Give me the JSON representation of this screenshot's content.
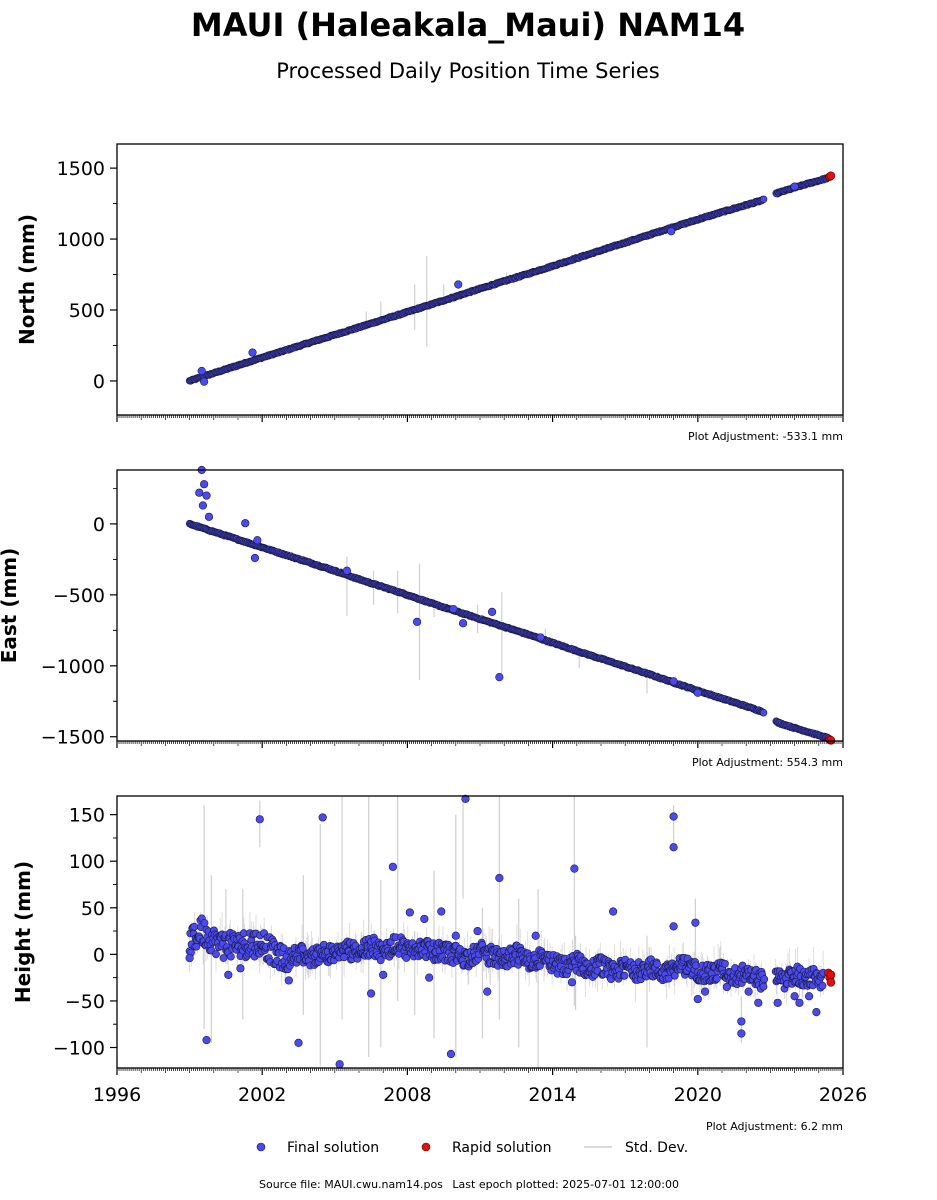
{
  "title": "MAUI (Haleakala_Maui) NAM14",
  "subtitle": "Processed Daily Position Time Series",
  "footer": {
    "source_label": "Source file: MAUI.cwu.nam14.pos",
    "last_epoch_label": "Last epoch plotted: 2025-07-01 12:00:00"
  },
  "legend": {
    "items": [
      {
        "label": "Final solution",
        "color": "#4a4af0"
      },
      {
        "label": "Rapid solution",
        "color": "#e01010"
      },
      {
        "label": "Std. Dev.",
        "color": "#cfcfcf"
      }
    ]
  },
  "chart_data": [
    {
      "type": "scatter",
      "ylabel": "North (mm)",
      "plot_adjustment": "Plot Adjustment: -533.1 mm",
      "xlim": [
        1996,
        2026
      ],
      "ylim": [
        -240,
        1670
      ],
      "yticks": [
        0,
        500,
        1000,
        1500
      ],
      "y_tick_labels": [
        "0",
        "500",
        "1000",
        "1500"
      ],
      "x_tick_labels": [],
      "series": [
        {
          "name": "Final solution",
          "points": [
            [
              1999.0,
              0
            ],
            [
              2000.0,
              55
            ],
            [
              2001.0,
              110
            ],
            [
              2002.0,
              165
            ],
            [
              2003.0,
              218
            ],
            [
              2004.0,
              272
            ],
            [
              2005.0,
              325
            ],
            [
              2006.0,
              378
            ],
            [
              2007.0,
              432
            ],
            [
              2008.0,
              486
            ],
            [
              2009.0,
              540
            ],
            [
              2010.0,
              595
            ],
            [
              2011.0,
              650
            ],
            [
              2012.0,
              703
            ],
            [
              2013.0,
              756
            ],
            [
              2014.0,
              810
            ],
            [
              2015.0,
              865
            ],
            [
              2016.0,
              920
            ],
            [
              2017.0,
              975
            ],
            [
              2018.0,
              1030
            ],
            [
              2019.0,
              1085
            ],
            [
              2020.0,
              1138
            ],
            [
              2021.0,
              1190
            ],
            [
              2022.0,
              1240
            ],
            [
              2022.7,
              1275
            ],
            [
              2023.3,
              1325
            ],
            [
              2024.0,
              1362
            ],
            [
              2024.5,
              1388
            ],
            [
              2025.0,
              1412
            ],
            [
              2025.4,
              1432
            ]
          ],
          "outliers": [
            [
              1999.6,
              -5
            ],
            [
              1999.5,
              70
            ],
            [
              2001.6,
              200
            ],
            [
              2010.1,
              680
            ],
            [
              2018.9,
              1055
            ],
            [
              2024.0,
              1370
            ]
          ]
        },
        {
          "name": "Rapid solution",
          "points": [
            [
              2025.45,
              1440
            ],
            [
              2025.5,
              1446
            ]
          ]
        }
      ],
      "std_dev": [
        [
          2006.3,
          440,
          100
        ],
        [
          2008.3,
          520,
          320
        ],
        [
          2008.8,
          560,
          640
        ],
        [
          2009.5,
          610,
          140
        ],
        [
          2006.9,
          490,
          140
        ],
        [
          2012.1,
          730,
          70
        ]
      ]
    },
    {
      "type": "scatter",
      "ylabel": "East (mm)",
      "plot_adjustment": "Plot Adjustment: 554.3 mm",
      "xlim": [
        1996,
        2026
      ],
      "ylim": [
        -1530,
        380
      ],
      "yticks": [
        -1500,
        -1000,
        -500,
        0
      ],
      "y_tick_labels": [
        "−1500",
        "−1000",
        "−500",
        "0"
      ],
      "x_tick_labels": [],
      "series": [
        {
          "name": "Final solution",
          "points": [
            [
              1999.0,
              0
            ],
            [
              2000.0,
              -55
            ],
            [
              2001.0,
              -110
            ],
            [
              2002.0,
              -165
            ],
            [
              2003.0,
              -220
            ],
            [
              2004.0,
              -275
            ],
            [
              2005.0,
              -330
            ],
            [
              2006.0,
              -390
            ],
            [
              2007.0,
              -445
            ],
            [
              2008.0,
              -500
            ],
            [
              2009.0,
              -560
            ],
            [
              2010.0,
              -615
            ],
            [
              2011.0,
              -670
            ],
            [
              2012.0,
              -725
            ],
            [
              2013.0,
              -780
            ],
            [
              2014.0,
              -838
            ],
            [
              2015.0,
              -895
            ],
            [
              2016.0,
              -950
            ],
            [
              2017.0,
              -1005
            ],
            [
              2018.0,
              -1060
            ],
            [
              2019.0,
              -1118
            ],
            [
              2020.0,
              -1175
            ],
            [
              2021.0,
              -1230
            ],
            [
              2022.0,
              -1285
            ],
            [
              2022.7,
              -1325
            ],
            [
              2023.3,
              -1400
            ],
            [
              2024.0,
              -1438
            ],
            [
              2024.5,
              -1463
            ],
            [
              2025.0,
              -1490
            ],
            [
              2025.4,
              -1510
            ]
          ],
          "outliers": [
            [
              1999.5,
              380
            ],
            [
              1999.6,
              280
            ],
            [
              1999.4,
              220
            ],
            [
              1999.7,
              200
            ],
            [
              1999.55,
              130
            ],
            [
              1999.8,
              50
            ],
            [
              2001.3,
              5
            ],
            [
              2001.7,
              -240
            ],
            [
              2001.8,
              -115
            ],
            [
              2005.5,
              -330
            ],
            [
              2008.4,
              -690
            ],
            [
              2009.9,
              -600
            ],
            [
              2010.3,
              -700
            ],
            [
              2011.5,
              -620
            ],
            [
              2011.8,
              -1080
            ],
            [
              2013.5,
              -800
            ],
            [
              2019.0,
              -1110
            ],
            [
              2020.0,
              -1190
            ]
          ]
        },
        {
          "name": "Rapid solution",
          "points": [
            [
              2025.45,
              -1520
            ],
            [
              2025.5,
              -1525
            ]
          ]
        }
      ],
      "std_dev": [
        [
          2005.5,
          -440,
          420
        ],
        [
          2006.6,
          -450,
          240
        ],
        [
          2007.6,
          -480,
          300
        ],
        [
          2008.5,
          -690,
          820
        ],
        [
          2009.1,
          -590,
          130
        ],
        [
          2010.9,
          -670,
          200
        ],
        [
          2011.9,
          -780,
          600
        ],
        [
          2013.7,
          -800,
          120
        ],
        [
          2015.1,
          -950,
          130
        ],
        [
          2017.9,
          -1120,
          150
        ]
      ]
    },
    {
      "type": "scatter",
      "ylabel": "Height (mm)",
      "plot_adjustment": "Plot Adjustment: 6.2 mm",
      "xlim": [
        1996,
        2026
      ],
      "ylim": [
        -122,
        170
      ],
      "yticks": [
        -100,
        -50,
        0,
        50,
        100,
        150
      ],
      "y_tick_labels": [
        "−100",
        "−50",
        "0",
        "50",
        "100",
        "150"
      ],
      "x_ticks": [
        1996,
        2002,
        2008,
        2014,
        2020,
        2026
      ],
      "x_tick_labels": [
        "1996",
        "2002",
        "2008",
        "2014",
        "2020",
        "2026"
      ],
      "series": [
        {
          "name": "Final solution",
          "points": [
            [
              1999.0,
              12
            ],
            [
              1999.5,
              25
            ],
            [
              2000.0,
              15
            ],
            [
              2000.5,
              8
            ],
            [
              2001.0,
              12
            ],
            [
              2001.5,
              10
            ],
            [
              2002.0,
              14
            ],
            [
              2002.5,
              0
            ],
            [
              2003.0,
              -8
            ],
            [
              2003.5,
              2
            ],
            [
              2004.0,
              -5
            ],
            [
              2004.5,
              4
            ],
            [
              2005.0,
              -2
            ],
            [
              2005.5,
              6
            ],
            [
              2006.0,
              0
            ],
            [
              2006.5,
              10
            ],
            [
              2007.0,
              2
            ],
            [
              2007.5,
              12
            ],
            [
              2008.0,
              5
            ],
            [
              2008.5,
              8
            ],
            [
              2009.0,
              4
            ],
            [
              2009.5,
              2
            ],
            [
              2010.0,
              0
            ],
            [
              2010.5,
              -5
            ],
            [
              2011.0,
              4
            ],
            [
              2011.5,
              -2
            ],
            [
              2012.0,
              -6
            ],
            [
              2012.5,
              0
            ],
            [
              2013.0,
              -8
            ],
            [
              2013.5,
              -4
            ],
            [
              2014.0,
              -10
            ],
            [
              2014.5,
              -14
            ],
            [
              2015.0,
              -8
            ],
            [
              2015.5,
              -16
            ],
            [
              2016.0,
              -12
            ],
            [
              2016.5,
              -20
            ],
            [
              2017.0,
              -15
            ],
            [
              2017.5,
              -18
            ],
            [
              2018.0,
              -14
            ],
            [
              2018.5,
              -20
            ],
            [
              2019.0,
              -15
            ],
            [
              2019.5,
              -12
            ],
            [
              2020.0,
              -18
            ],
            [
              2020.5,
              -22
            ],
            [
              2021.0,
              -16
            ],
            [
              2021.5,
              -24
            ],
            [
              2022.0,
              -20
            ],
            [
              2022.5,
              -28
            ],
            [
              2023.2,
              -25
            ],
            [
              2023.6,
              -30
            ],
            [
              2024.0,
              -20
            ],
            [
              2024.4,
              -28
            ],
            [
              2024.8,
              -25
            ],
            [
              2025.2,
              -30
            ]
          ],
          "outliers": [
            [
              2001.9,
              145
            ],
            [
              2004.5,
              147
            ],
            [
              2007.4,
              94
            ],
            [
              2011.8,
              82
            ],
            [
              2014.9,
              92
            ],
            [
              2010.4,
              167
            ],
            [
              2019.0,
              148
            ],
            [
              2019.0,
              115
            ],
            [
              2016.5,
              46
            ],
            [
              2019.9,
              34
            ],
            [
              2019.0,
              30
            ],
            [
              2008.1,
              45
            ],
            [
              2008.7,
              38
            ],
            [
              2009.4,
              46
            ],
            [
              2010.0,
              20
            ],
            [
              2010.9,
              25
            ],
            [
              2013.3,
              20
            ],
            [
              1999.7,
              -92
            ],
            [
              2003.5,
              -95
            ],
            [
              2005.2,
              -118
            ],
            [
              2009.8,
              -107
            ],
            [
              2006.5,
              -42
            ],
            [
              2011.3,
              -40
            ],
            [
              2021.8,
              -72
            ],
            [
              2021.8,
              -85
            ],
            [
              2024.0,
              -45
            ],
            [
              2024.2,
              -52
            ],
            [
              2024.9,
              -62
            ],
            [
              2024.6,
              -45
            ],
            [
              2023.3,
              -52
            ],
            [
              2022.5,
              -52
            ],
            [
              1999.0,
              -4
            ],
            [
              2000.6,
              -22
            ],
            [
              2001.1,
              -15
            ],
            [
              2003.1,
              -28
            ],
            [
              2007.0,
              -22
            ],
            [
              2008.9,
              -25
            ],
            [
              2014.8,
              -30
            ],
            [
              2020.0,
              -48
            ],
            [
              2020.3,
              -40
            ],
            [
              2021.2,
              -35
            ],
            [
              2022.1,
              -40
            ]
          ]
        },
        {
          "name": "Rapid solution",
          "points": [
            [
              2025.4,
              -20
            ],
            [
              2025.45,
              -25
            ],
            [
              2025.5,
              -30
            ],
            [
              2025.5,
              -22
            ]
          ]
        }
      ],
      "std_dev": [
        [
          1999.6,
          40,
          240
        ],
        [
          1999.9,
          -5,
          180
        ],
        [
          2000.5,
          30,
          80
        ],
        [
          2001.2,
          0,
          140
        ],
        [
          2001.9,
          140,
          50
        ],
        [
          2003.7,
          10,
          150
        ],
        [
          2004.4,
          10,
          260
        ],
        [
          2005.3,
          50,
          240
        ],
        [
          2006.4,
          30,
          280
        ],
        [
          2006.9,
          -10,
          180
        ],
        [
          2007.6,
          60,
          220
        ],
        [
          2008.3,
          -20,
          90
        ],
        [
          2009.1,
          0,
          180
        ],
        [
          2010.0,
          20,
          260
        ],
        [
          2010.3,
          120,
          120
        ],
        [
          2011.1,
          -20,
          140
        ],
        [
          2011.8,
          60,
          260
        ],
        [
          2012.6,
          -20,
          160
        ],
        [
          2013.4,
          -30,
          200
        ],
        [
          2014.9,
          60,
          230
        ],
        [
          2014.95,
          -20,
          80
        ],
        [
          2017.9,
          -40,
          120
        ],
        [
          2019.0,
          140,
          40
        ],
        [
          2019.9,
          30,
          60
        ],
        [
          2021.8,
          -70,
          50
        ]
      ]
    }
  ]
}
